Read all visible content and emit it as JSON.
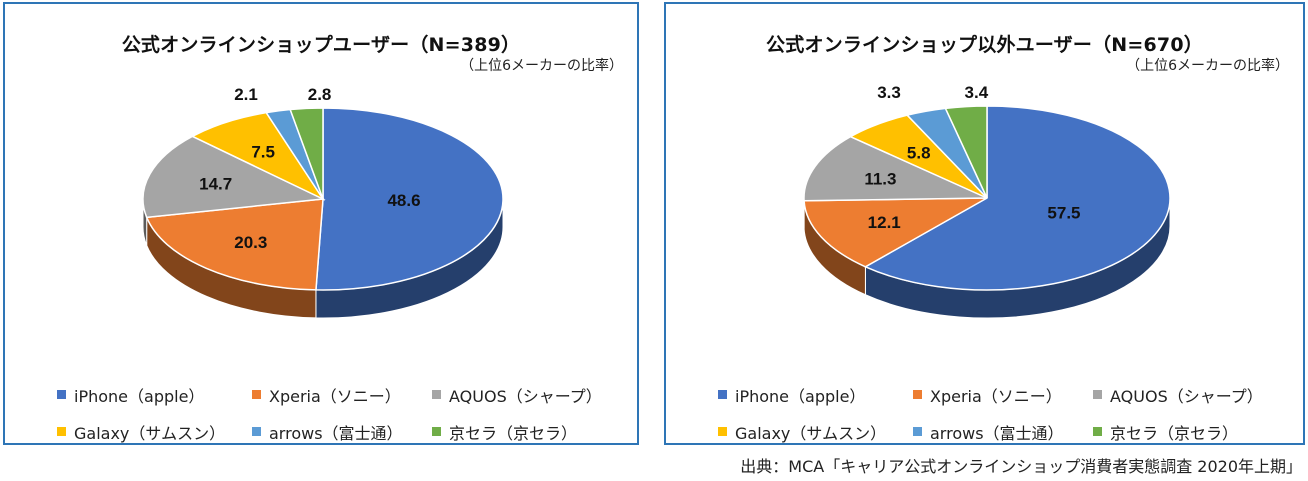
{
  "chart_data": [
    {
      "type": "pie",
      "title": "公式オンラインショップユーザー（N=389）",
      "subtitle": "（上位6メーカーの比率）",
      "categories": [
        "iPhone（apple）",
        "Xperia（ソニー）",
        "AQUOS（シャープ）",
        "Galaxy（サムスン）",
        "arrows（富士通）",
        "京セラ（京セラ）"
      ],
      "values": [
        48.6,
        20.3,
        14.7,
        7.5,
        2.1,
        2.8
      ],
      "data_labels": [
        "48.6",
        "20.3",
        "14.7",
        "7.5",
        "2.1",
        "2.8"
      ],
      "legend_position": "bottom"
    },
    {
      "type": "pie",
      "title": "公式オンラインショップ以外ユーザー（N=670）",
      "subtitle": "（上位6メーカーの比率）",
      "categories": [
        "iPhone（apple）",
        "Xperia（ソニー）",
        "AQUOS（シャープ）",
        "Galaxy（サムスン）",
        "arrows（富士通）",
        "京セラ（京セラ）"
      ],
      "values": [
        57.5,
        12.1,
        11.3,
        5.8,
        3.3,
        3.4
      ],
      "data_labels": [
        "57.5",
        "12.1",
        "11.3",
        "5.8",
        "3.3",
        "3.4"
      ],
      "legend_position": "bottom"
    }
  ],
  "colors": [
    "#4472c4",
    "#ed7d31",
    "#a5a5a5",
    "#ffc000",
    "#5b9bd5",
    "#70ad47"
  ],
  "footer": "出典：MCA「キャリア公式オンラインショップ消費者実態調査 2020年上期」"
}
